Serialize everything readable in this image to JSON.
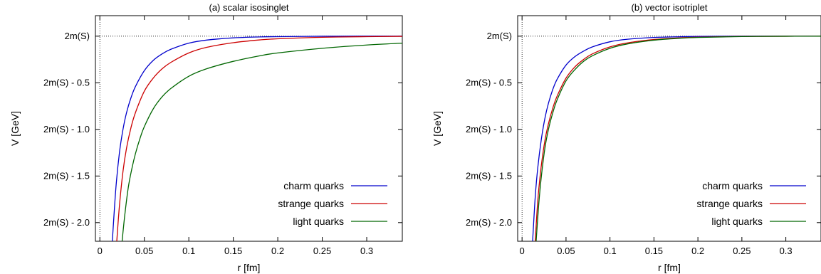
{
  "chart_data": [
    {
      "type": "line",
      "title": "(a) scalar isosinglet",
      "xlabel": "r [fm]",
      "ylabel": "V [GeV]",
      "xlim": [
        -0.005,
        0.34
      ],
      "ylim": [
        -2.2,
        0.22
      ],
      "x_ticks": [
        {
          "value": 0,
          "label": "0"
        },
        {
          "value": 0.05,
          "label": "0.05"
        },
        {
          "value": 0.1,
          "label": "0.1"
        },
        {
          "value": 0.15,
          "label": "0.15"
        },
        {
          "value": 0.2,
          "label": "0.2"
        },
        {
          "value": 0.25,
          "label": "0.25"
        },
        {
          "value": 0.3,
          "label": "0.3"
        }
      ],
      "y_ticks": [
        {
          "value": 0,
          "label": "2m(S)"
        },
        {
          "value": -0.5,
          "label": "2m(S) - 0.5"
        },
        {
          "value": -1.0,
          "label": "2m(S) - 1.0"
        },
        {
          "value": -1.5,
          "label": "2m(S) - 1.5"
        },
        {
          "value": -2.0,
          "label": "2m(S) - 2.0"
        }
      ],
      "reference_lines": {
        "horizontal_at": 0,
        "vertical_at": 0,
        "style": "dotted"
      },
      "legend_position": "bottom-right",
      "series": [
        {
          "name": "charm quarks",
          "color": "#0000cc",
          "x": [
            0.014,
            0.018,
            0.022,
            0.026,
            0.03,
            0.035,
            0.04,
            0.05,
            0.06,
            0.07,
            0.08,
            0.1,
            0.12,
            0.15,
            0.18,
            0.2,
            0.25,
            0.3,
            0.34
          ],
          "y": [
            -2.2,
            -1.63,
            -1.25,
            -1.0,
            -0.82,
            -0.66,
            -0.54,
            -0.37,
            -0.26,
            -0.19,
            -0.14,
            -0.075,
            -0.042,
            -0.018,
            -0.008,
            -0.005,
            -0.001,
            0.0,
            0.0
          ]
        },
        {
          "name": "strange quarks",
          "color": "#cc0000",
          "x": [
            0.019,
            0.022,
            0.026,
            0.03,
            0.035,
            0.04,
            0.05,
            0.06,
            0.07,
            0.08,
            0.1,
            0.12,
            0.15,
            0.18,
            0.2,
            0.25,
            0.3,
            0.34
          ],
          "y": [
            -2.2,
            -1.82,
            -1.45,
            -1.2,
            -0.98,
            -0.82,
            -0.59,
            -0.45,
            -0.35,
            -0.28,
            -0.18,
            -0.12,
            -0.07,
            -0.04,
            -0.028,
            -0.012,
            -0.005,
            -0.002
          ]
        },
        {
          "name": "light quarks",
          "color": "#006600",
          "x": [
            0.025,
            0.028,
            0.032,
            0.036,
            0.04,
            0.045,
            0.05,
            0.06,
            0.07,
            0.08,
            0.1,
            0.12,
            0.15,
            0.18,
            0.2,
            0.25,
            0.3,
            0.34
          ],
          "y": [
            -2.2,
            -1.92,
            -1.62,
            -1.42,
            -1.26,
            -1.1,
            -0.97,
            -0.78,
            -0.65,
            -0.56,
            -0.43,
            -0.35,
            -0.27,
            -0.21,
            -0.18,
            -0.13,
            -0.095,
            -0.075
          ]
        }
      ]
    },
    {
      "type": "line",
      "title": "(b) vector isotriplet",
      "xlabel": "r [fm]",
      "ylabel": "V [GeV]",
      "xlim": [
        -0.005,
        0.34
      ],
      "ylim": [
        -2.2,
        0.22
      ],
      "x_ticks": [
        {
          "value": 0,
          "label": "0"
        },
        {
          "value": 0.05,
          "label": "0.05"
        },
        {
          "value": 0.1,
          "label": "0.1"
        },
        {
          "value": 0.15,
          "label": "0.15"
        },
        {
          "value": 0.2,
          "label": "0.2"
        },
        {
          "value": 0.25,
          "label": "0.25"
        },
        {
          "value": 0.3,
          "label": "0.3"
        }
      ],
      "y_ticks": [
        {
          "value": 0,
          "label": "2m(S)"
        },
        {
          "value": -0.5,
          "label": "2m(S) - 0.5"
        },
        {
          "value": -1.0,
          "label": "2m(S) - 1.0"
        },
        {
          "value": -1.5,
          "label": "2m(S) - 1.5"
        },
        {
          "value": -2.0,
          "label": "2m(S) - 2.0"
        }
      ],
      "reference_lines": {
        "horizontal_at": 0,
        "vertical_at": 0,
        "style": "dotted"
      },
      "legend_position": "bottom-right",
      "series": [
        {
          "name": "charm quarks",
          "color": "#0000cc",
          "x": [
            0.012,
            0.015,
            0.018,
            0.022,
            0.026,
            0.03,
            0.035,
            0.04,
            0.05,
            0.06,
            0.07,
            0.08,
            0.1,
            0.12,
            0.15,
            0.18,
            0.2,
            0.25,
            0.3,
            0.34
          ],
          "y": [
            -2.2,
            -1.72,
            -1.4,
            -1.1,
            -0.88,
            -0.72,
            -0.57,
            -0.46,
            -0.31,
            -0.22,
            -0.16,
            -0.115,
            -0.06,
            -0.033,
            -0.014,
            -0.006,
            -0.003,
            0.0,
            0.0,
            0.0
          ]
        },
        {
          "name": "strange quarks",
          "color": "#cc0000",
          "x": [
            0.015,
            0.018,
            0.022,
            0.026,
            0.03,
            0.035,
            0.04,
            0.05,
            0.06,
            0.07,
            0.08,
            0.1,
            0.12,
            0.15,
            0.18,
            0.2,
            0.25,
            0.3,
            0.34
          ],
          "y": [
            -2.2,
            -1.75,
            -1.38,
            -1.12,
            -0.94,
            -0.77,
            -0.64,
            -0.45,
            -0.33,
            -0.25,
            -0.19,
            -0.115,
            -0.072,
            -0.036,
            -0.018,
            -0.011,
            -0.003,
            -0.001,
            0.0
          ]
        },
        {
          "name": "light quarks",
          "color": "#006600",
          "x": [
            0.016,
            0.019,
            0.022,
            0.026,
            0.03,
            0.035,
            0.04,
            0.05,
            0.06,
            0.07,
            0.08,
            0.1,
            0.12,
            0.15,
            0.18,
            0.2,
            0.25,
            0.3,
            0.34
          ],
          "y": [
            -2.2,
            -1.8,
            -1.5,
            -1.2,
            -1.0,
            -0.82,
            -0.68,
            -0.48,
            -0.36,
            -0.27,
            -0.21,
            -0.13,
            -0.083,
            -0.043,
            -0.022,
            -0.014,
            -0.004,
            -0.001,
            0.0
          ]
        }
      ]
    }
  ]
}
